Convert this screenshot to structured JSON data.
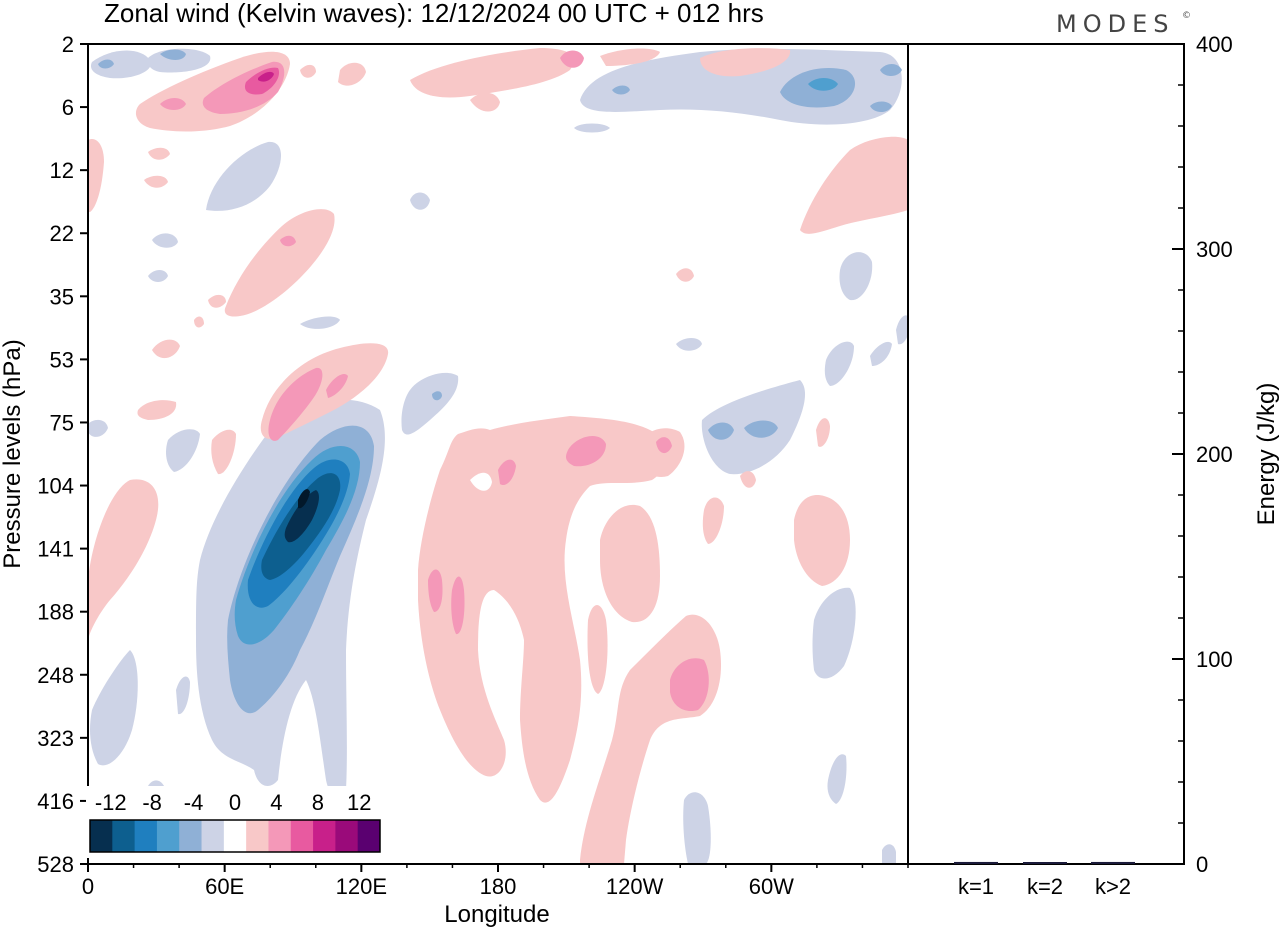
{
  "brand": {
    "name": "MODES",
    "mark": "©"
  },
  "chart_data": [
    {
      "type": "heatmap",
      "title": "Zonal wind (Kelvin waves):  12/12/2024  00 UTC  + 012 hrs",
      "xlabel": "Longitude",
      "ylabel": "Pressure levels (hPa)",
      "x_ticks": [
        "0",
        "60E",
        "120E",
        "180",
        "120W",
        "60W"
      ],
      "x_tick_values": [
        0,
        60,
        120,
        180,
        240,
        300
      ],
      "xlim": [
        0,
        360
      ],
      "y_ticks": [
        "2",
        "6",
        "12",
        "22",
        "35",
        "53",
        "75",
        "104",
        "141",
        "188",
        "248",
        "323",
        "416",
        "528"
      ],
      "y_ticks_desc": "pressure levels shown top to bottom, equally spaced",
      "colorbar": {
        "tick_labels": [
          "-12",
          "-8",
          "-4",
          "0",
          "4",
          "8",
          "12"
        ],
        "levels": [
          -14,
          -12,
          -10,
          -8,
          -6,
          -4,
          -2,
          2,
          4,
          6,
          8,
          10,
          12,
          14
        ],
        "colors": [
          "#062f4f",
          "#0d5f8f",
          "#1f7fbf",
          "#4f9fcf",
          "#8fb0d6",
          "#cdd3e6",
          "#ffffff",
          "#f8c8c8",
          "#f498b8",
          "#e85aa0",
          "#c8208a",
          "#9a0a7a",
          "#5a0070"
        ]
      },
      "features": [
        {
          "kind": "negative",
          "level": 2,
          "lon": 25,
          "p": 3.8
        },
        {
          "kind": "negative",
          "level": 2,
          "lon": 52,
          "p": 3.8
        },
        {
          "kind": "positive",
          "level": 2,
          "lon": 75,
          "p": 5.5
        },
        {
          "kind": "positive",
          "level": 4,
          "lon": 78,
          "p": 5.0
        },
        {
          "kind": "positive",
          "level": 6,
          "lon": 80,
          "p": 4.5
        },
        {
          "kind": "negative",
          "level": 2,
          "lon": 70,
          "p": 15
        },
        {
          "kind": "positive",
          "level": 2,
          "lon": 85,
          "p": 22
        },
        {
          "kind": "positive",
          "level": 4,
          "lon": 88,
          "p": 65
        },
        {
          "kind": "negative",
          "level": 12,
          "lon": 95,
          "p": 115
        },
        {
          "kind": "negative",
          "level": 6,
          "lon": 75,
          "p": 170
        },
        {
          "kind": "positive",
          "level": 4,
          "lon": 160,
          "p": 150
        },
        {
          "kind": "positive",
          "level": 4,
          "lon": 218,
          "p": 85
        },
        {
          "kind": "positive",
          "level": 4,
          "lon": 262,
          "p": 250
        },
        {
          "kind": "negative",
          "level": 4,
          "lon": 330,
          "p": 4
        },
        {
          "kind": "negative",
          "level": 4,
          "lon": 285,
          "p": 82
        },
        {
          "kind": "positive",
          "level": 2,
          "lon": 345,
          "p": 15
        }
      ]
    },
    {
      "type": "bar",
      "ylabel": "Energy (J/kg)",
      "categories": [
        "k=1",
        "k=2",
        "k>2"
      ],
      "values": [
        1,
        0.5,
        1
      ],
      "ylim": [
        0,
        400
      ],
      "y_ticks": [
        "0",
        "100",
        "200",
        "300",
        "400"
      ],
      "y_tick_values": [
        0,
        100,
        200,
        300,
        400
      ],
      "bar_color": "#1a1a3a"
    }
  ]
}
